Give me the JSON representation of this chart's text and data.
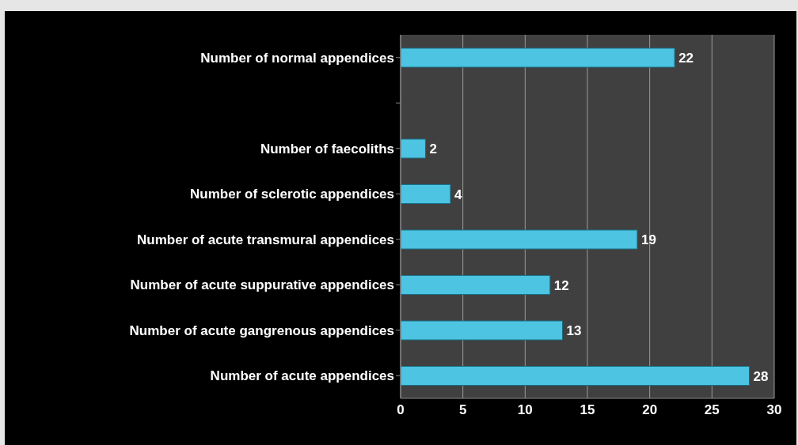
{
  "chart_data": {
    "type": "bar",
    "orientation": "horizontal",
    "categories": [
      "Number of normal appendices",
      null,
      "Number of faecoliths",
      "Number of sclerotic appendices",
      "Number of acute transmural appendices",
      "Number of acute suppurative appendices",
      "Number of acute gangrenous appendices",
      "Number of acute appendices"
    ],
    "values": [
      22,
      null,
      2,
      4,
      19,
      12,
      13,
      28
    ],
    "color": "#4cc4e2",
    "xlim": [
      0,
      30
    ],
    "xticks": [
      0,
      5,
      10,
      15,
      20,
      25,
      30
    ],
    "grid": "x",
    "data_labels": true
  }
}
